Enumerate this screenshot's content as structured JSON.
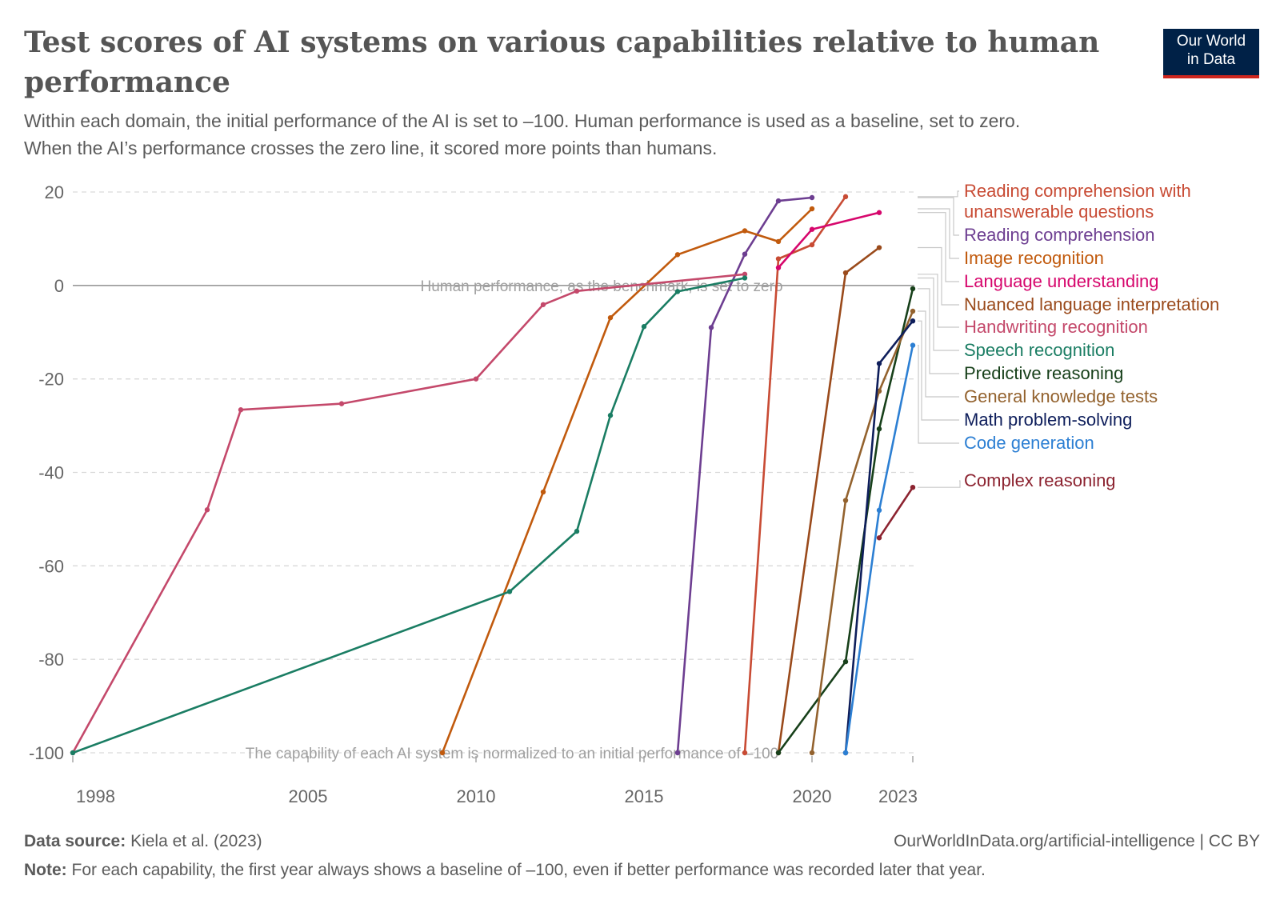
{
  "header": {
    "title": "Test scores of AI systems on various capabilities relative to human performance",
    "subtitle_line1": "Within each domain, the initial performance of the AI is set to –100. Human performance is used as a baseline, set to zero.",
    "subtitle_line2": "When the AI’s performance crosses the zero line, it scored more points than humans.",
    "logo_line1": "Our World",
    "logo_line2": "in Data"
  },
  "footer": {
    "source_label": "Data source:",
    "source_text": "Kiela et al. (2023)",
    "url_text": "OurWorldInData.org/artificial-intelligence | CC BY",
    "note_label": "Note:",
    "note_text": "For each capability, the first year always shows a baseline of –100, even if better performance was recorded later that year."
  },
  "chart_data": {
    "type": "line",
    "title": "Test scores of AI systems on various capabilities relative to human performance",
    "xlim": [
      1998,
      2023
    ],
    "ylim": [
      -100,
      20
    ],
    "x_ticks": [
      1998,
      2005,
      2010,
      2015,
      2020,
      2023
    ],
    "y_ticks": [
      20,
      0,
      -20,
      -40,
      -60,
      -80,
      -100
    ],
    "grid": "horizontal dashed",
    "legend": "right",
    "annotations": {
      "human_line": "Human performance, as the benchmark, is set to zero",
      "baseline_line": "The capability of each AI system is normalized to an initial performance of –100"
    },
    "series": [
      {
        "name": "Reading comprehension with unanswerable questions",
        "color": "#c84b34",
        "points": [
          [
            2018,
            -100
          ],
          [
            2019,
            5.7
          ],
          [
            2020,
            8.7
          ],
          [
            2021,
            19
          ]
        ]
      },
      {
        "name": "Reading comprehension",
        "color": "#6d3e91",
        "points": [
          [
            2016,
            -100
          ],
          [
            2017,
            -9
          ],
          [
            2018,
            6.7
          ],
          [
            2019,
            18.1
          ],
          [
            2020,
            18.8
          ]
        ]
      },
      {
        "name": "Image recognition",
        "color": "#c15a0d",
        "points": [
          [
            2009,
            -100
          ],
          [
            2012,
            -44.2
          ],
          [
            2014,
            -6.9
          ],
          [
            2016,
            6.6
          ],
          [
            2018,
            11.7
          ],
          [
            2019,
            9.4
          ],
          [
            2020,
            16.4
          ]
        ]
      },
      {
        "name": "Language understanding",
        "color": "#d6066c",
        "points": [
          [
            2019,
            3.8
          ],
          [
            2020,
            12
          ],
          [
            2022,
            15.6
          ]
        ]
      },
      {
        "name": "Nuanced language interpretation",
        "color": "#9a4a1b",
        "points": [
          [
            2019,
            -100
          ],
          [
            2021,
            2.7
          ],
          [
            2022,
            8.1
          ]
        ]
      },
      {
        "name": "Handwriting recognition",
        "color": "#c4496b",
        "points": [
          [
            1998,
            -100
          ],
          [
            2002,
            -48
          ],
          [
            2003,
            -26.6
          ],
          [
            2006,
            -25.3
          ],
          [
            2010,
            -20
          ],
          [
            2012,
            -4.1
          ],
          [
            2013,
            -1.2
          ],
          [
            2018,
            2.4
          ]
        ]
      },
      {
        "name": "Speech recognition",
        "color": "#1a7d63",
        "points": [
          [
            1998,
            -100
          ],
          [
            2011,
            -65.5
          ],
          [
            2013,
            -52.6
          ],
          [
            2014,
            -27.8
          ],
          [
            2015,
            -8.8
          ],
          [
            2016,
            -1.3
          ],
          [
            2018,
            1.6
          ]
        ]
      },
      {
        "name": "Predictive reasoning",
        "color": "#17401a",
        "points": [
          [
            2019,
            -100
          ],
          [
            2021,
            -80.5
          ],
          [
            2022,
            -30.7
          ],
          [
            2023,
            -0.7
          ]
        ]
      },
      {
        "name": "General knowledge tests",
        "color": "#93622e",
        "points": [
          [
            2020,
            -100
          ],
          [
            2021,
            -46
          ],
          [
            2022,
            -22.6
          ],
          [
            2023,
            -5.5
          ]
        ]
      },
      {
        "name": "Math problem-solving",
        "color": "#0e1e5b",
        "points": [
          [
            2021,
            -100
          ],
          [
            2022,
            -16.7
          ],
          [
            2023,
            -7.6
          ]
        ]
      },
      {
        "name": "Code generation",
        "color": "#2c7fd3",
        "points": [
          [
            2021,
            -100
          ],
          [
            2022,
            -48.1
          ],
          [
            2023,
            -12.8
          ]
        ]
      },
      {
        "name": "Complex reasoning",
        "color": "#8c2330",
        "points": [
          [
            2022,
            -54
          ],
          [
            2023,
            -43.2
          ]
        ]
      }
    ]
  }
}
